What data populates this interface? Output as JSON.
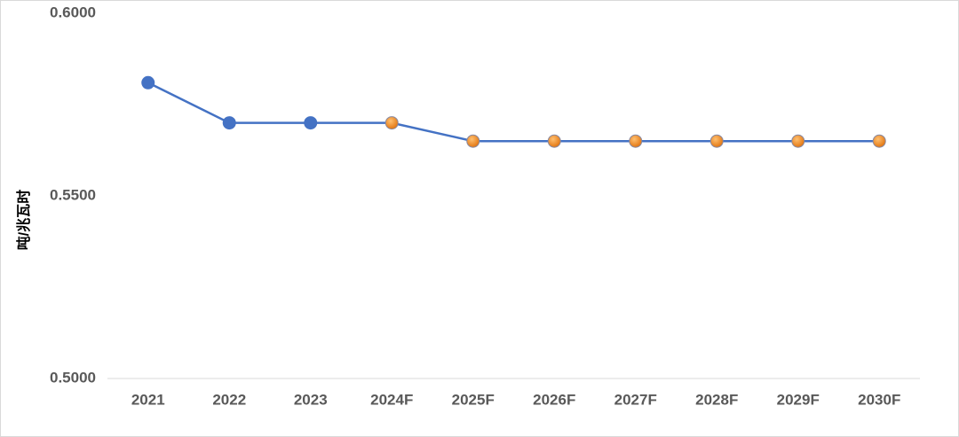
{
  "chart_data": {
    "type": "line",
    "y_label": "吨/兆瓦时",
    "categories": [
      "2021",
      "2022",
      "2023",
      "2024F",
      "2025F",
      "2026F",
      "2027F",
      "2028F",
      "2029F",
      "2030F"
    ],
    "values": [
      0.581,
      0.57,
      0.57,
      0.57,
      0.565,
      0.565,
      0.565,
      0.565,
      0.565,
      0.565
    ],
    "color": "#4472c4",
    "marker_colors": [
      "#4472c4",
      "#4472c4",
      "#4472c4",
      "#f08a24",
      "#f08a24",
      "#f08a24",
      "#f08a24",
      "#f08a24",
      "#f08a24",
      "#f08a24"
    ],
    "ylim": [
      0.5,
      0.6
    ],
    "yticks": [
      {
        "value": 0.5,
        "label": "0.5000"
      },
      {
        "value": 0.55,
        "label": "0.5500"
      },
      {
        "value": 0.6,
        "label": "0.6000"
      }
    ],
    "grid": false
  }
}
